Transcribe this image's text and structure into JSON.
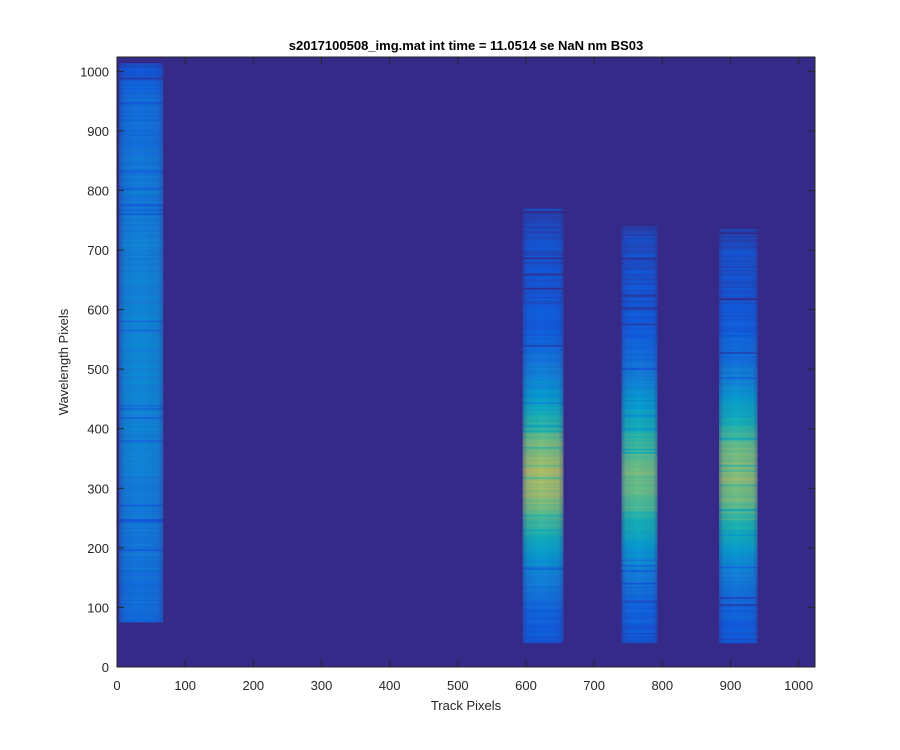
{
  "chart_data": {
    "type": "heatmap",
    "title": "s2017100508_img.mat int time = 11.0514 se  NaN nm BS03",
    "xlabel": "Track Pixels",
    "ylabel": "Wavelength Pixels",
    "xlim": [
      0,
      1024
    ],
    "ylim": [
      0,
      1024
    ],
    "xticks": [
      0,
      100,
      200,
      300,
      400,
      500,
      600,
      700,
      800,
      900,
      1000
    ],
    "yticks": [
      0,
      100,
      200,
      300,
      400,
      500,
      600,
      700,
      800,
      900,
      1000
    ],
    "grid": false,
    "colormap": "parula",
    "background_color": "#352a87",
    "tracks": [
      {
        "x0": 3,
        "x1": 68,
        "y0": 75,
        "y1": 1015,
        "peak_y": 520,
        "peak_level": 0.35,
        "spread": 500
      },
      {
        "x0": 595,
        "x1": 655,
        "y0": 40,
        "y1": 770,
        "peak_y": 320,
        "peak_level": 0.85,
        "spread": 150
      },
      {
        "x0": 740,
        "x1": 793,
        "y0": 40,
        "y1": 740,
        "peak_y": 320,
        "peak_level": 0.75,
        "spread": 150
      },
      {
        "x0": 883,
        "x1": 940,
        "y0": 40,
        "y1": 735,
        "peak_y": 320,
        "peak_level": 0.8,
        "spread": 150
      }
    ]
  }
}
